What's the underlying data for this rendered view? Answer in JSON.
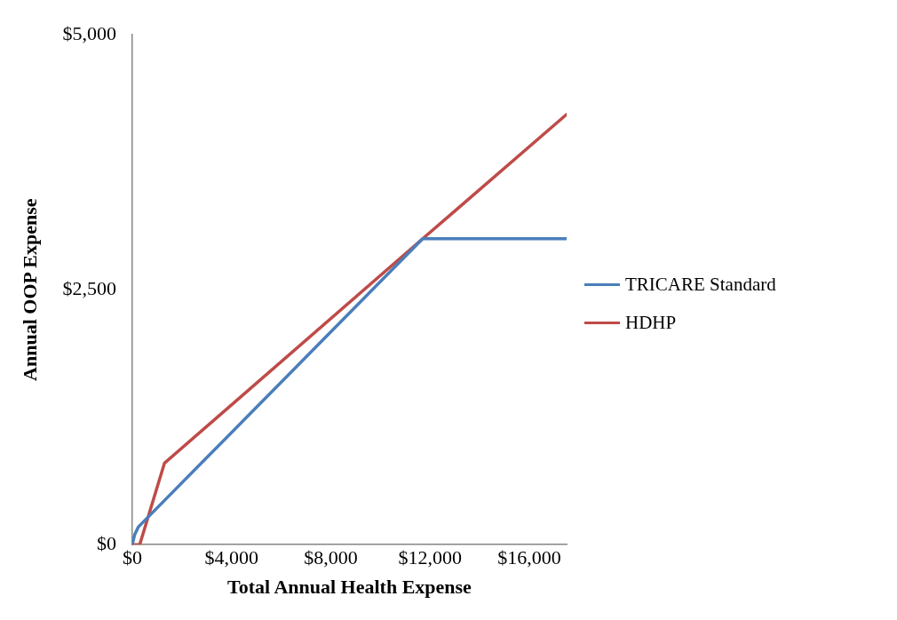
{
  "chart_data": {
    "type": "line",
    "xlabel": "Total Annual Health Expense",
    "ylabel": "Annual OOP Expense",
    "xlim": [
      0,
      17500
    ],
    "xticks": [
      {
        "value": 0,
        "label": "$0"
      },
      {
        "value": 4000,
        "label": "$4,000"
      },
      {
        "value": 8000,
        "label": "$8,000"
      },
      {
        "value": 12000,
        "label": "$12,000"
      },
      {
        "value": 16000,
        "label": "$16,000"
      }
    ],
    "ylim": [
      0,
      5000
    ],
    "yticks": [
      {
        "value": 0,
        "label": "$0"
      },
      {
        "value": 2500,
        "label": "$2,500"
      },
      {
        "value": 5000,
        "label": "$5,000"
      }
    ],
    "grid": false,
    "legend": "right",
    "marker": "none",
    "series": [
      {
        "name": "TRICARE Standard",
        "color": "#4a7ebb",
        "x": [
          0,
          100,
          250,
          11700,
          17500
        ],
        "values": [
          0,
          100,
          175,
          3000,
          3000
        ]
      },
      {
        "name": "HDHP",
        "color": "#be4b48",
        "x": [
          0,
          300,
          1300,
          11700,
          17500
        ],
        "values": [
          0,
          0,
          800,
          3000,
          4220
        ]
      }
    ]
  }
}
